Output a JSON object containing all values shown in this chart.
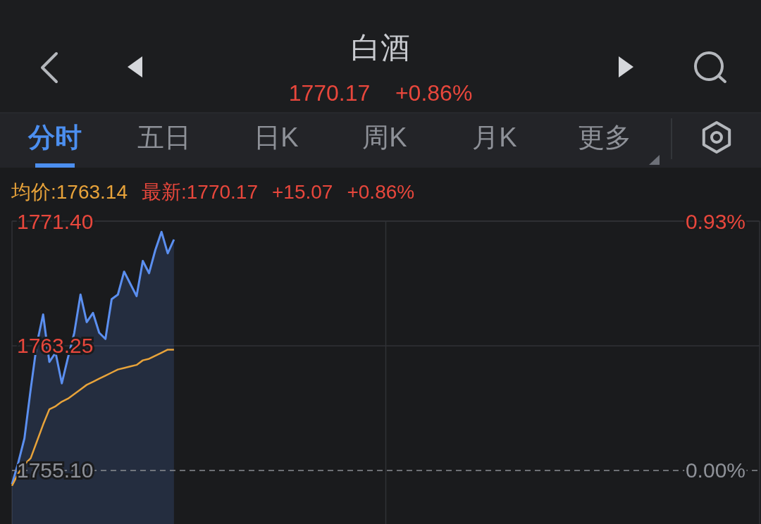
{
  "chart_data": {
    "type": "line",
    "title": "白酒",
    "subtitle": "1770.17    +0.86%",
    "annotations": [
      "分时",
      "五日",
      "日K",
      "周K",
      "月K",
      "更多",
      "均价:1763.14",
      "最新:1770.17",
      "+15.07",
      "+0.86%"
    ],
    "categories": [
      null,
      null,
      null,
      null,
      null,
      null,
      null,
      null,
      null,
      null,
      null,
      null,
      null,
      null,
      null,
      null,
      null,
      null,
      null,
      null,
      null,
      null,
      null,
      null,
      null,
      null,
      null,
      null,
      null,
      null,
      null,
      null,
      null,
      null,
      null,
      null,
      null,
      null,
      null,
      null,
      null,
      null,
      null,
      null,
      null,
      null,
      null,
      null,
      null,
      null,
      null,
      null,
      null,
      null,
      null,
      null,
      null,
      null,
      null,
      null,
      null,
      null,
      null,
      null,
      null,
      null,
      null,
      null,
      null,
      null,
      null,
      null,
      null,
      null,
      null,
      null,
      null,
      null,
      null,
      null,
      null,
      null,
      null,
      null,
      null,
      null,
      null,
      null,
      null,
      null,
      null,
      null,
      null,
      null,
      null,
      null,
      null,
      null,
      null,
      null,
      null,
      null,
      null,
      null,
      null,
      null,
      null,
      null,
      null,
      null,
      null,
      null,
      null,
      null,
      null,
      null,
      null,
      null,
      null,
      null,
      null
    ],
    "ylim": [
      1751.6,
      1771.4
    ],
    "yticks": [
      {
        "value": 1755.1,
        "label": "1755.10"
      },
      {
        "value": 1763.25,
        "label": "1763.25"
      },
      {
        "value": 1771.4,
        "label": "1771.40"
      }
    ],
    "y2lim": [
      -0.2,
      0.93
    ],
    "y2ticks": [
      {
        "value": 0,
        "label": "0.00%"
      },
      {
        "value": 0.93,
        "label": "0.93%"
      }
    ],
    "tick_labels": "y",
    "grid": true,
    "ref_lines": [
      {
        "axis": "y",
        "value": 1755.1,
        "line_style": "dashed",
        "color": "#8a8d92"
      }
    ],
    "series": [
      {
        "type": "area",
        "color": "#5b8ff0",
        "values": [
          1754.2,
          1755.6,
          1757.2,
          1760.4,
          1763.4,
          1765.3,
          1762.2,
          1762.8,
          1760.8,
          1762.5,
          1764.1,
          1766.6,
          1764.8,
          1765.4,
          1764.1,
          1763.7,
          1766.3,
          1766.6,
          1768.1,
          1767.3,
          1766.5,
          1768.8,
          1768.0,
          1769.5,
          1770.7,
          1769.3,
          1770.2,
          null,
          null,
          null,
          null,
          null,
          null,
          null,
          null,
          null,
          null,
          null,
          null,
          null,
          null,
          null,
          null,
          null,
          null,
          null,
          null,
          null,
          null,
          null,
          null,
          null,
          null,
          null,
          null,
          null,
          null,
          null,
          null,
          null,
          null,
          null,
          null,
          null,
          null,
          null,
          null,
          null,
          null,
          null,
          null,
          null,
          null,
          null,
          null,
          null,
          null,
          null,
          null,
          null,
          null,
          null,
          null,
          null,
          null,
          null,
          null,
          null,
          null,
          null,
          null,
          null,
          null,
          null,
          null,
          null,
          null,
          null,
          null,
          null,
          null,
          null,
          null,
          null,
          null,
          null,
          null,
          null,
          null,
          null,
          null,
          null,
          null,
          null,
          null,
          null,
          null,
          null,
          null,
          null,
          null
        ]
      },
      {
        "color": "#e8a33a",
        "values": [
          1754.1,
          1754.9,
          1755.5,
          1755.9,
          1757.0,
          1758.1,
          1759.1,
          1759.3,
          1759.6,
          1759.8,
          1760.1,
          1760.4,
          1760.7,
          1760.9,
          1761.1,
          1761.3,
          1761.5,
          1761.7,
          1761.8,
          1761.9,
          1762.0,
          1762.3,
          1762.4,
          1762.6,
          1762.8,
          1763.0,
          1763.0,
          null,
          null,
          null,
          null,
          null,
          null,
          null,
          null,
          null,
          null,
          null,
          null,
          null,
          null,
          null,
          null,
          null,
          null,
          null,
          null,
          null,
          null,
          null,
          null,
          null,
          null,
          null,
          null,
          null,
          null,
          null,
          null,
          null,
          null,
          null,
          null,
          null,
          null,
          null,
          null,
          null,
          null,
          null,
          null,
          null,
          null,
          null,
          null,
          null,
          null,
          null,
          null,
          null,
          null,
          null,
          null,
          null,
          null,
          null,
          null,
          null,
          null,
          null,
          null,
          null,
          null,
          null,
          null,
          null,
          null,
          null,
          null,
          null,
          null,
          null,
          null,
          null,
          null,
          null,
          null,
          null,
          null,
          null,
          null,
          null,
          null,
          null,
          null,
          null,
          null,
          null,
          null,
          null,
          null
        ]
      }
    ]
  }
}
